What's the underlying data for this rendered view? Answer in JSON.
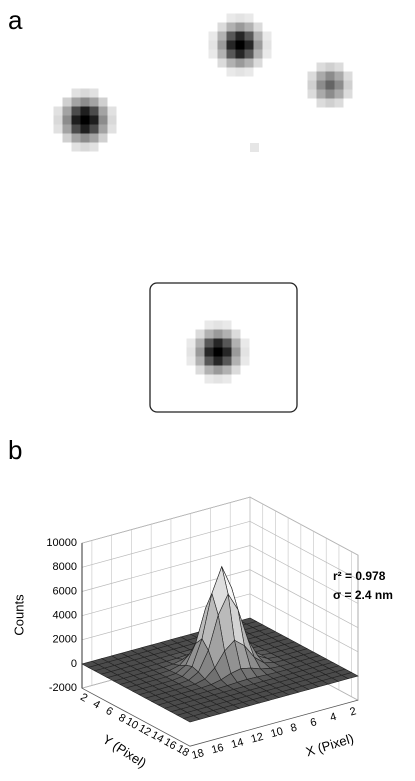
{
  "panel_a": {
    "label": "a"
  },
  "panel_b": {
    "label": "b",
    "fit_r2": "r² = 0.978",
    "fit_sigma": "σ = 2.4 nm",
    "z_axis_label": "Counts",
    "z_ticks": [
      10000,
      8000,
      6000,
      4000,
      2000,
      0,
      -2000
    ],
    "y_axis_label": "Y (Pixel)",
    "y_ticks": [
      2,
      4,
      6,
      8,
      10,
      12,
      14,
      16,
      18
    ],
    "x_axis_label": "X (Pixel)",
    "x_ticks": [
      18,
      16,
      14,
      12,
      10,
      8,
      6,
      4,
      2
    ]
  }
}
